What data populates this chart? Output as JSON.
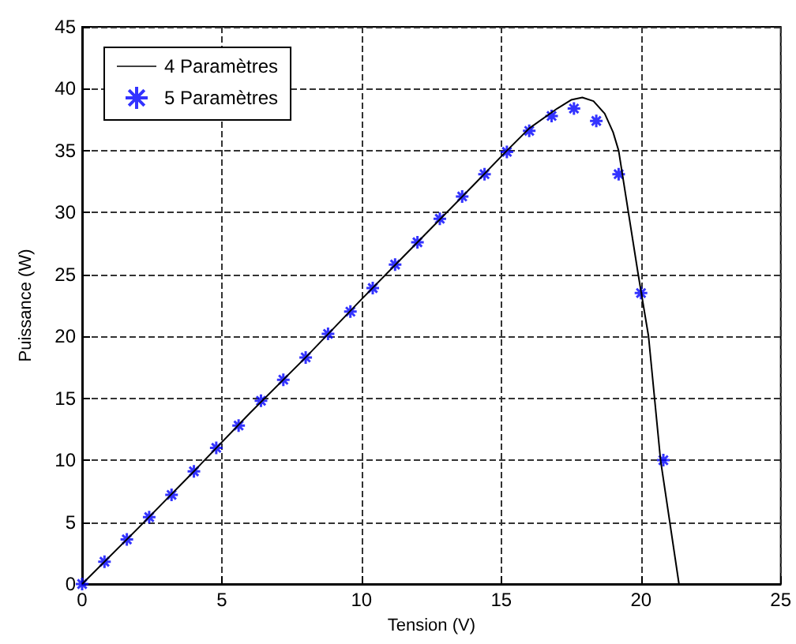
{
  "chart_data": {
    "type": "line",
    "xlabel": "Tension (V)",
    "ylabel": "Puissance (W)",
    "xlim": [
      0,
      25
    ],
    "xticks": [
      0,
      5,
      10,
      15,
      20,
      25
    ],
    "ylim": [
      0,
      45
    ],
    "yticks": [
      0,
      5,
      10,
      15,
      20,
      25,
      30,
      35,
      40,
      45
    ],
    "grid": true,
    "legend": "top left",
    "line_style": "solid",
    "series": [
      {
        "name": "4 Paramètres",
        "color": "#000000",
        "marker": "none",
        "x": [
          0,
          2,
          4,
          6,
          8,
          10,
          12,
          14,
          15.2,
          16,
          17,
          17.5,
          17.9,
          18.3,
          18.7,
          19,
          19.2,
          19.55,
          19.9,
          20.27,
          20.7,
          21.36
        ],
        "values": [
          0,
          4.5,
          9.1,
          13.8,
          18.3,
          23,
          27.6,
          32.2,
          35,
          36.8,
          38.4,
          39.1,
          39.3,
          39,
          38,
          36.5,
          35,
          30,
          25,
          20,
          10,
          0
        ]
      },
      {
        "name": "5 Paramètres",
        "type": "scatter",
        "color": "#0000ff",
        "marker": "cross",
        "x": [
          0,
          0.8,
          1.6,
          2.4,
          3.2,
          4.0,
          4.8,
          5.6,
          6.4,
          7.2,
          8.0,
          8.8,
          9.6,
          10.4,
          11.2,
          12.0,
          12.8,
          13.6,
          14.4,
          15.2,
          16.0,
          16.8,
          17.6,
          18.4,
          19.2,
          20.0,
          20.8
        ],
        "values": [
          0,
          1.8,
          3.6,
          5.4,
          7.2,
          9.1,
          11.0,
          12.8,
          14.8,
          16.5,
          18.3,
          20.2,
          22.0,
          23.9,
          25.8,
          27.6,
          29.5,
          31.3,
          33.1,
          34.9,
          36.6,
          37.8,
          38.4,
          37.4,
          33.1,
          23.5,
          10.0
        ]
      }
    ]
  }
}
